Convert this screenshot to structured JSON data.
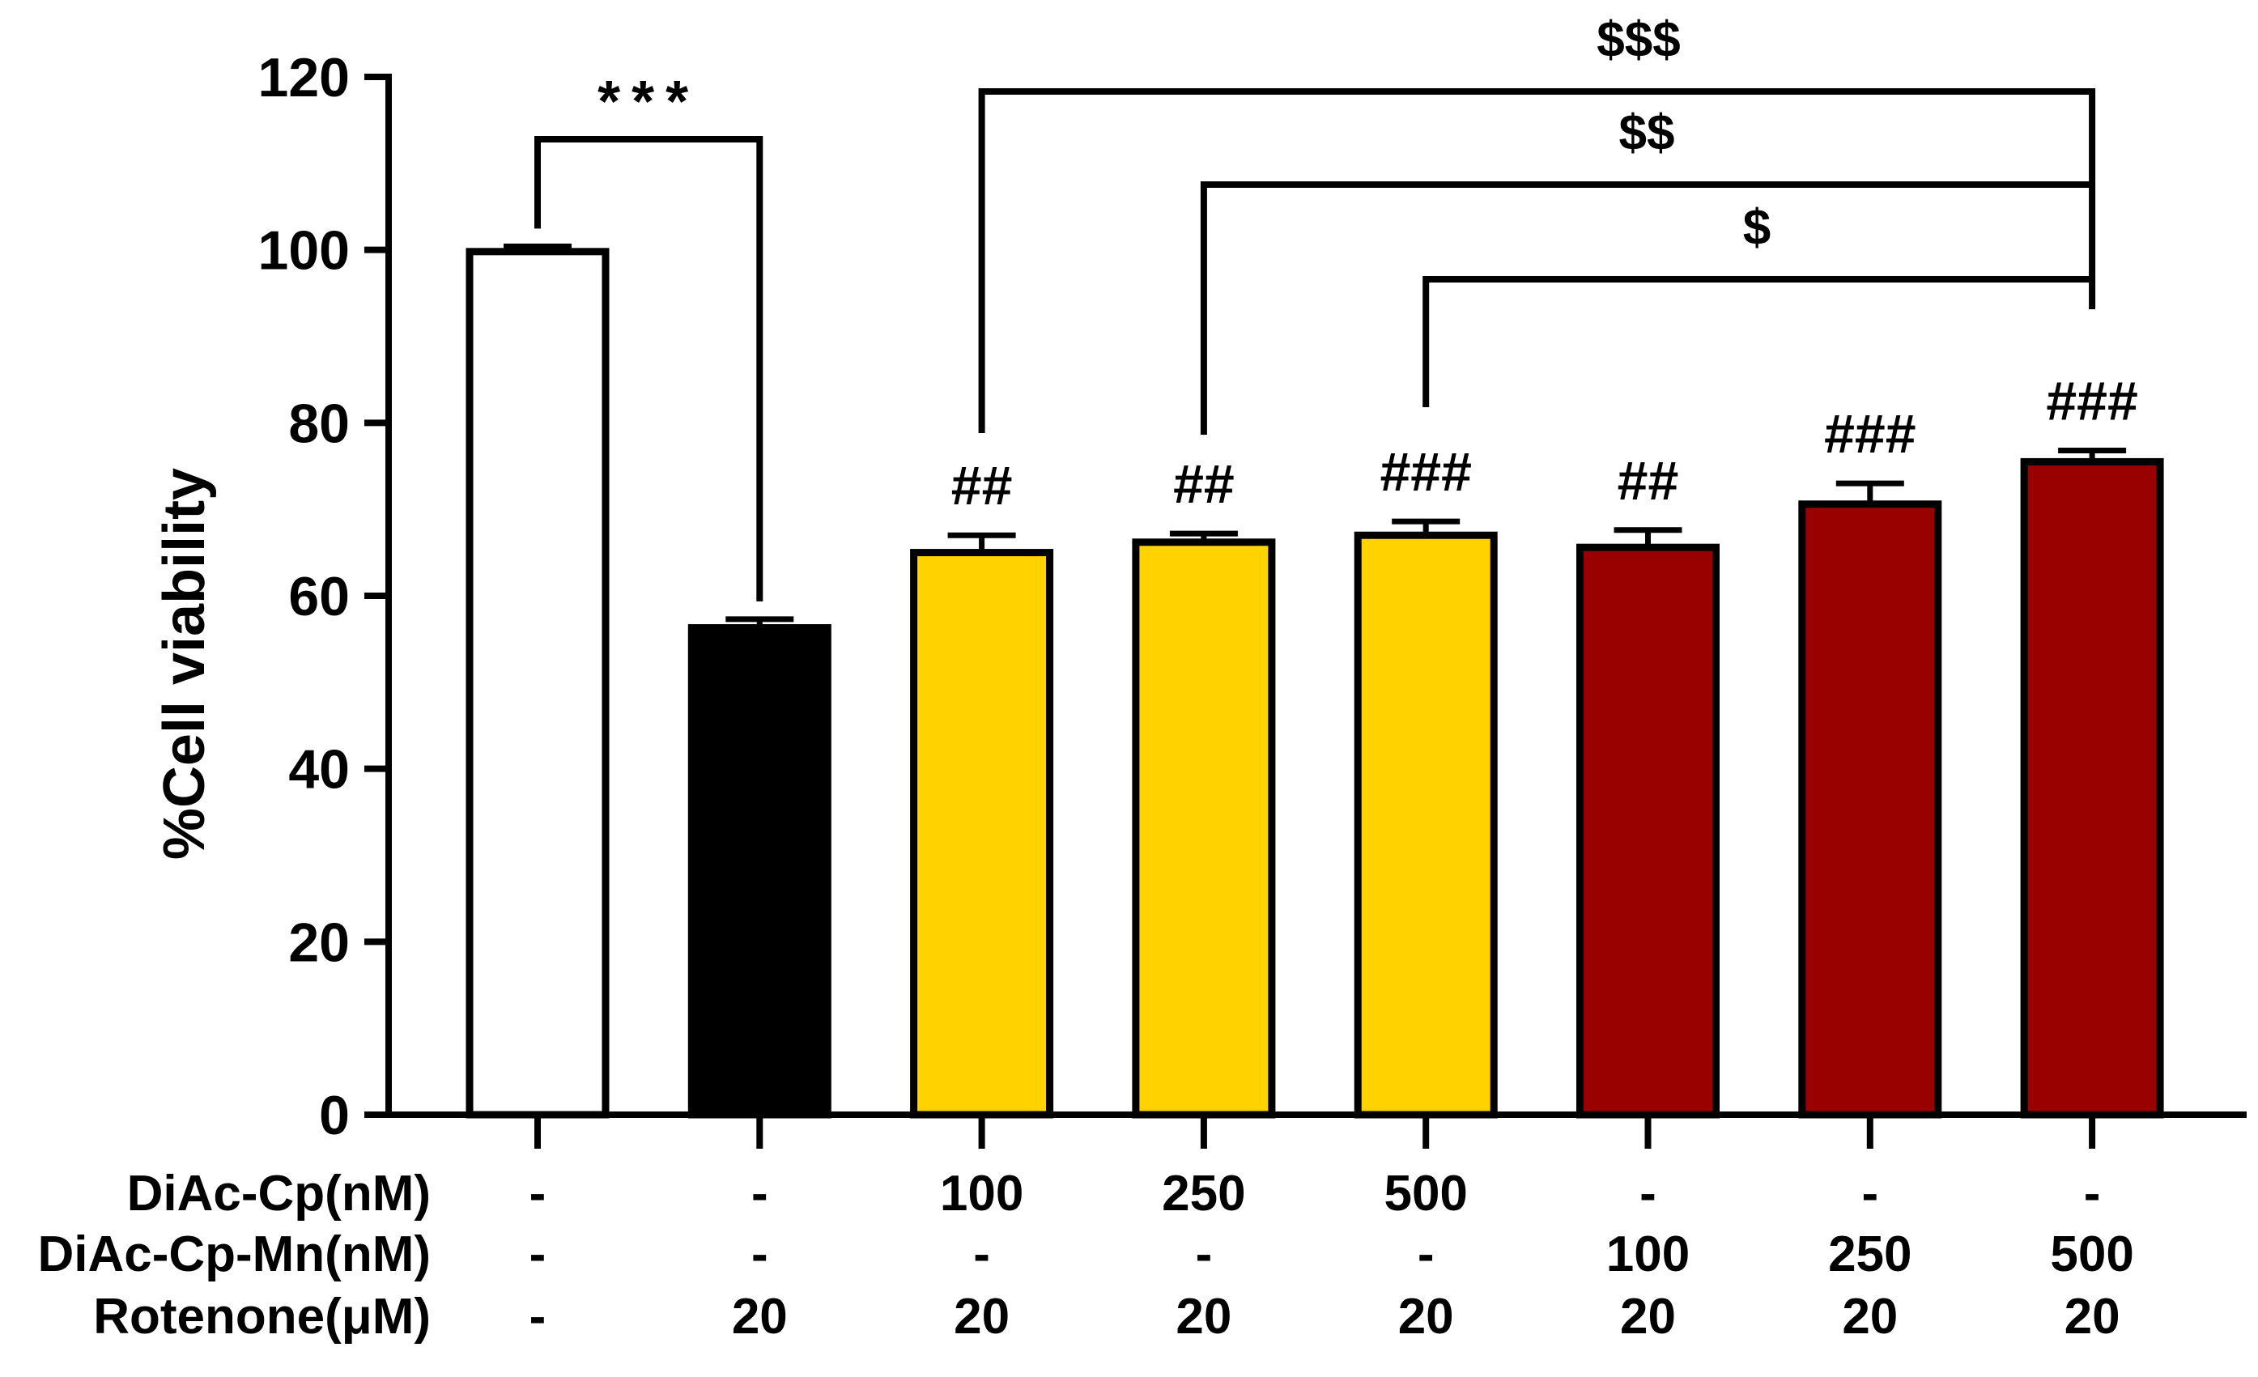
{
  "chart_data": {
    "type": "bar",
    "ylabel": "%Cell viability",
    "ylim": [
      0,
      120
    ],
    "yticks": [
      "0",
      "20",
      "40",
      "60",
      "80",
      "100",
      "120"
    ],
    "grid": false,
    "bars": [
      {
        "value": 99.8,
        "error": 0.6,
        "color": "#ffffff",
        "annotation": ""
      },
      {
        "value": 56.3,
        "error": 1.0,
        "color": "#000000",
        "annotation": ""
      },
      {
        "value": 65.0,
        "error": 2.0,
        "color": "#ffd200",
        "annotation": "##"
      },
      {
        "value": 66.2,
        "error": 1.0,
        "color": "#ffd200",
        "annotation": "##"
      },
      {
        "value": 67.0,
        "error": 1.6,
        "color": "#ffd200",
        "annotation": "###"
      },
      {
        "value": 65.6,
        "error": 2.0,
        "color": "#990000",
        "annotation": "##"
      },
      {
        "value": 70.6,
        "error": 2.4,
        "color": "#990000",
        "annotation": "###"
      },
      {
        "value": 75.5,
        "error": 1.3,
        "color": "#990000",
        "annotation": "###"
      }
    ],
    "treatment_rows": [
      {
        "label": "DiAc-Cp(nM)",
        "values": [
          "-",
          "-",
          "100",
          "250",
          "500",
          "-",
          "-",
          "-"
        ]
      },
      {
        "label": "DiAc-Cp-Mn(nM)",
        "values": [
          "-",
          "-",
          "-",
          "-",
          "-",
          "100",
          "250",
          "500"
        ]
      },
      {
        "label": "Rotenone(μM)",
        "values": [
          "-",
          "20",
          "20",
          "20",
          "20",
          "20",
          "20",
          "20"
        ]
      }
    ],
    "significance": [
      {
        "from": 0,
        "to": 1,
        "label": "***"
      },
      {
        "from": 2,
        "to": 7,
        "label": "$$$"
      },
      {
        "from": 3,
        "to": 7,
        "label": "$$"
      },
      {
        "from": 4,
        "to": 7,
        "label": "$"
      }
    ]
  }
}
